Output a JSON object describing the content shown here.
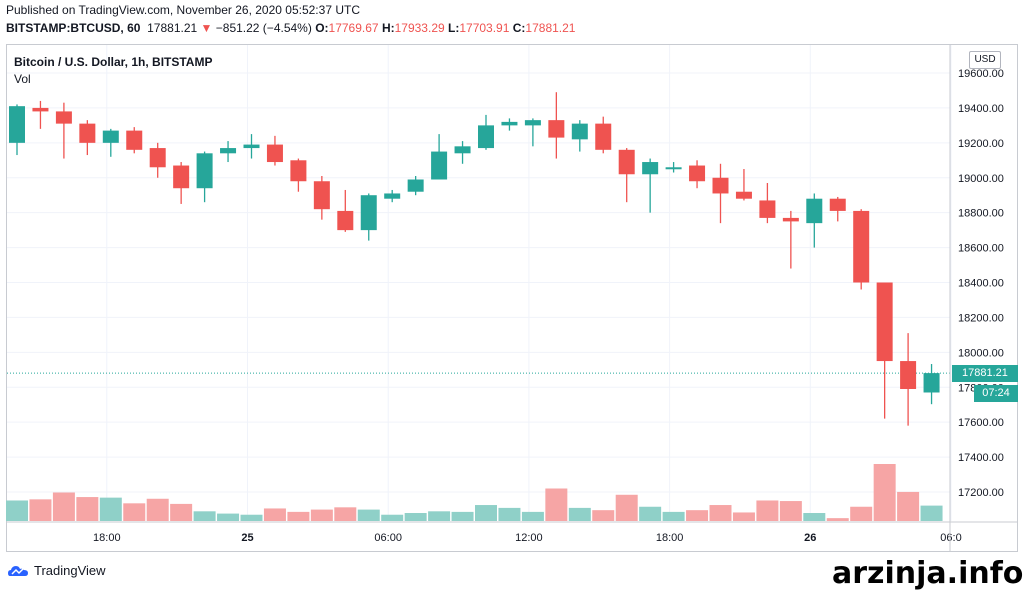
{
  "header": {
    "published": "Published on TradingView.com, November 26, 2020 05:52:37 UTC",
    "symbol": "BITSTAMP:BTCUSD, 60",
    "last": "17881.21",
    "change": "−851.22 (−4.54%)",
    "o_label": "O:",
    "o_value": "17769.67",
    "h_label": "H:",
    "h_value": "17933.29",
    "l_label": "L:",
    "l_value": "17703.91",
    "c_label": "C:",
    "c_value": "17881.21"
  },
  "legend": {
    "title": "Bitcoin / U.S. Dollar, 1h, BITSTAMP",
    "vol": "Vol"
  },
  "currency_button": "USD",
  "price_tag": "17881.21",
  "countdown": "07:24",
  "footer": {
    "logo": "TradingView"
  },
  "watermark": "arzinja.info",
  "colors": {
    "up": "#26a69a",
    "down": "#ef5350",
    "vol_up": "#8fd0c8",
    "vol_down": "#f6a5a5"
  },
  "chart_data": {
    "type": "candlestick",
    "y_ticks": [
      "19600.00",
      "19400.00",
      "19200.00",
      "19000.00",
      "18800.00",
      "18600.00",
      "18400.00",
      "18200.00",
      "18000.00",
      "17800.00",
      "17600.00",
      "17400.00",
      "17200.00"
    ],
    "x_ticks": [
      {
        "index": 4,
        "label": "18:00"
      },
      {
        "index": 10,
        "label": "25"
      },
      {
        "index": 16,
        "label": "06:00"
      },
      {
        "index": 22,
        "label": "12:00"
      },
      {
        "index": 28,
        "label": "18:00"
      },
      {
        "index": 34,
        "label": "26"
      },
      {
        "index": 40,
        "label": "06:0"
      }
    ],
    "ylim": [
      17050,
      19680
    ],
    "last_price": 17881.21,
    "candles": [
      {
        "o": 19200,
        "h": 19420,
        "l": 19130,
        "c": 19410,
        "v": 0.36
      },
      {
        "o": 19400,
        "h": 19440,
        "l": 19280,
        "c": 19380,
        "v": 0.38
      },
      {
        "o": 19380,
        "h": 19430,
        "l": 19110,
        "c": 19310,
        "v": 0.5
      },
      {
        "o": 19310,
        "h": 19330,
        "l": 19130,
        "c": 19200,
        "v": 0.42
      },
      {
        "o": 19200,
        "h": 19280,
        "l": 19120,
        "c": 19270,
        "v": 0.41
      },
      {
        "o": 19270,
        "h": 19290,
        "l": 19140,
        "c": 19160,
        "v": 0.31
      },
      {
        "o": 19170,
        "h": 19200,
        "l": 19000,
        "c": 19060,
        "v": 0.39
      },
      {
        "o": 19070,
        "h": 19090,
        "l": 18850,
        "c": 18940,
        "v": 0.3
      },
      {
        "o": 18940,
        "h": 19150,
        "l": 18860,
        "c": 19140,
        "v": 0.17
      },
      {
        "o": 19140,
        "h": 19210,
        "l": 19090,
        "c": 19170,
        "v": 0.13
      },
      {
        "o": 19170,
        "h": 19250,
        "l": 19110,
        "c": 19190,
        "v": 0.11
      },
      {
        "o": 19190,
        "h": 19240,
        "l": 19070,
        "c": 19090,
        "v": 0.22
      },
      {
        "o": 19100,
        "h": 19110,
        "l": 18920,
        "c": 18980,
        "v": 0.16
      },
      {
        "o": 18980,
        "h": 19010,
        "l": 18760,
        "c": 18820,
        "v": 0.2
      },
      {
        "o": 18810,
        "h": 18930,
        "l": 18690,
        "c": 18700,
        "v": 0.24
      },
      {
        "o": 18700,
        "h": 18910,
        "l": 18640,
        "c": 18900,
        "v": 0.2
      },
      {
        "o": 18880,
        "h": 18930,
        "l": 18860,
        "c": 18910,
        "v": 0.11
      },
      {
        "o": 18920,
        "h": 19010,
        "l": 18900,
        "c": 18990,
        "v": 0.14
      },
      {
        "o": 18990,
        "h": 19250,
        "l": 18990,
        "c": 19150,
        "v": 0.17
      },
      {
        "o": 19140,
        "h": 19210,
        "l": 19080,
        "c": 19180,
        "v": 0.16
      },
      {
        "o": 19170,
        "h": 19360,
        "l": 19160,
        "c": 19300,
        "v": 0.28
      },
      {
        "o": 19300,
        "h": 19340,
        "l": 19270,
        "c": 19320,
        "v": 0.23
      },
      {
        "o": 19300,
        "h": 19340,
        "l": 19180,
        "c": 19330,
        "v": 0.16
      },
      {
        "o": 19330,
        "h": 19490,
        "l": 19110,
        "c": 19230,
        "v": 0.57
      },
      {
        "o": 19220,
        "h": 19330,
        "l": 19150,
        "c": 19310,
        "v": 0.23
      },
      {
        "o": 19310,
        "h": 19350,
        "l": 19140,
        "c": 19160,
        "v": 0.19
      },
      {
        "o": 19160,
        "h": 19170,
        "l": 18860,
        "c": 19020,
        "v": 0.46
      },
      {
        "o": 19020,
        "h": 19110,
        "l": 18800,
        "c": 19090,
        "v": 0.25
      },
      {
        "o": 19050,
        "h": 19090,
        "l": 19030,
        "c": 19060,
        "v": 0.16
      },
      {
        "o": 19070,
        "h": 19100,
        "l": 18940,
        "c": 18980,
        "v": 0.19
      },
      {
        "o": 19000,
        "h": 19080,
        "l": 18740,
        "c": 18910,
        "v": 0.28
      },
      {
        "o": 18920,
        "h": 19050,
        "l": 18870,
        "c": 18880,
        "v": 0.15
      },
      {
        "o": 18870,
        "h": 18970,
        "l": 18740,
        "c": 18770,
        "v": 0.36
      },
      {
        "o": 18770,
        "h": 18810,
        "l": 18480,
        "c": 18750,
        "v": 0.35
      },
      {
        "o": 18740,
        "h": 18910,
        "l": 18600,
        "c": 18880,
        "v": 0.14
      },
      {
        "o": 18880,
        "h": 18890,
        "l": 18750,
        "c": 18810,
        "v": 0.05
      },
      {
        "o": 18810,
        "h": 18820,
        "l": 18360,
        "c": 18400,
        "v": 0.25
      },
      {
        "o": 18400,
        "h": 18400,
        "l": 17620,
        "c": 17950,
        "v": 1.0
      },
      {
        "o": 17950,
        "h": 18110,
        "l": 17580,
        "c": 17790,
        "v": 0.51
      },
      {
        "o": 17770,
        "h": 17933,
        "l": 17703,
        "c": 17881,
        "v": 0.27
      }
    ]
  }
}
